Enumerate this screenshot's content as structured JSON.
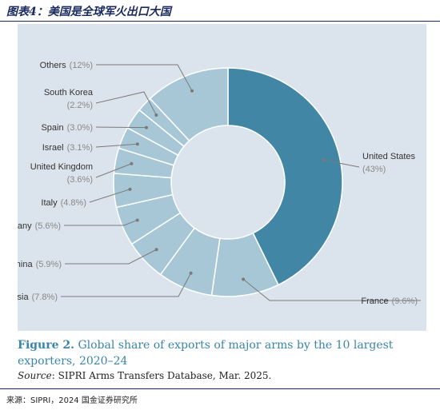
{
  "header": {
    "title": "图表4：美国是全球军火出口大国"
  },
  "chart_data": {
    "type": "pie",
    "style": "donut",
    "slices": [
      {
        "label": "United States",
        "value": 43,
        "value_text": "(43%)",
        "color": "#4286a6"
      },
      {
        "label": "France",
        "value": 9.6,
        "value_text": "(9.6%)",
        "color": "#a7c7d6"
      },
      {
        "label": "Russia",
        "value": 7.8,
        "value_text": "(7.8%)",
        "color": "#a7c7d6"
      },
      {
        "label": "China",
        "value": 5.9,
        "value_text": "(5.9%)",
        "color": "#a7c7d6"
      },
      {
        "label": "Germany",
        "value": 5.6,
        "value_text": "(5.6%)",
        "color": "#a7c7d6"
      },
      {
        "label": "Italy",
        "value": 4.8,
        "value_text": "(4.8%)",
        "color": "#a7c7d6"
      },
      {
        "label": "United Kingdom",
        "value": 3.6,
        "value_text": "(3.6%)",
        "color": "#a7c7d6"
      },
      {
        "label": "Israel",
        "value": 3.1,
        "value_text": "(3.1%)",
        "color": "#a7c7d6"
      },
      {
        "label": "Spain",
        "value": 3.0,
        "value_text": "(3.0%)",
        "color": "#a7c7d6"
      },
      {
        "label": "South Korea",
        "value": 2.2,
        "value_text": "(2.2%)",
        "color": "#a7c7d6"
      },
      {
        "label": "Others",
        "value": 12,
        "value_text": "(12%)",
        "color": "#a7c7d6"
      }
    ],
    "background_color": "#dbe4ec",
    "label_color": "#333333",
    "value_color": "#888888"
  },
  "caption": {
    "figure_label": "Figure 2.",
    "text": "Global share of exports of major arms by the 10 largest exporters, 2020–24"
  },
  "source": {
    "label": "Source",
    "text": ": SIPRI Arms Transfers Database, Mar. 2025."
  },
  "footer": {
    "text": "来源：SIPRI，2024 国金证券研究所"
  }
}
